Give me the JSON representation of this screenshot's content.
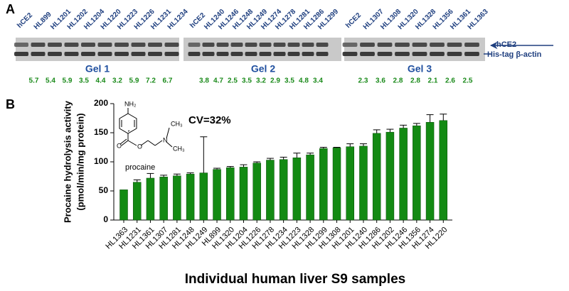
{
  "panel_a": {
    "label": "A",
    "gels": [
      {
        "name": "Gel 1",
        "lanes": [
          "hCE2",
          "HL899",
          "HL1201",
          "HL1202",
          "HL1204",
          "HL1220",
          "HL1223",
          "HL1226",
          "HL1231",
          "HL1234"
        ],
        "ratios": [
          5.7,
          5.4,
          5.9,
          3.5,
          4.4,
          3.2,
          5.9,
          7.2,
          6.7
        ]
      },
      {
        "name": "Gel 2",
        "lanes": [
          "hCE2",
          "HL1240",
          "HL1246",
          "HL1248",
          "HL1249",
          "HL1274",
          "HL1278",
          "HL1281",
          "HL1286",
          "HL1299"
        ],
        "ratios": [
          3.8,
          4.7,
          2.5,
          3.5,
          3.2,
          2.9,
          3.5,
          4.8,
          3.4
        ]
      },
      {
        "name": "Gel 3",
        "lanes": [
          "hCE2",
          "HL1307",
          "HL1308",
          "HL1320",
          "HL1328",
          "HL1356",
          "HL1361",
          "HL1363"
        ],
        "ratios": [
          2.3,
          3.6,
          2.8,
          2.8,
          2.1,
          2.6,
          2.5
        ]
      }
    ],
    "band_labels": [
      "hCE2",
      "His-tag β-actin"
    ]
  },
  "chart_data": {
    "type": "bar",
    "panel_label": "B",
    "ylabel": [
      "Procaine hydrolysis activity",
      "(pmol/min/mg protein)"
    ],
    "xlabel": "Individual human liver S9 samples",
    "annotation": "CV=32%",
    "structure": {
      "name": "procaine",
      "labels": [
        "NH₂",
        "CH₃",
        "CH₃"
      ]
    },
    "categories": [
      "HL1363",
      "HL1231",
      "HL1361",
      "HL1307",
      "HL1281",
      "HL1248",
      "HL1249",
      "HL899",
      "HL1320",
      "HL1204",
      "HL1226",
      "HL1278",
      "HL1234",
      "HL1223",
      "HL1328",
      "HL1299",
      "HL1308",
      "HL1201",
      "HL1240",
      "HL1286",
      "HL1202",
      "HL1246",
      "HL1356",
      "HL1274",
      "HL1220"
    ],
    "values": [
      52,
      65,
      72,
      74,
      76,
      79,
      81,
      87,
      90,
      91,
      98,
      103,
      104,
      107,
      112,
      123,
      124,
      126,
      127,
      149,
      151,
      158,
      162,
      168,
      171
    ],
    "errors": [
      0,
      4,
      8,
      3,
      3,
      2,
      62,
      2,
      2,
      4,
      2,
      3,
      4,
      8,
      3,
      2,
      1,
      5,
      4,
      6,
      5,
      5,
      4,
      13,
      11
    ],
    "color": "#138a13",
    "ylim": [
      0,
      200
    ],
    "yticks": [
      0,
      50,
      100,
      150,
      200
    ]
  }
}
